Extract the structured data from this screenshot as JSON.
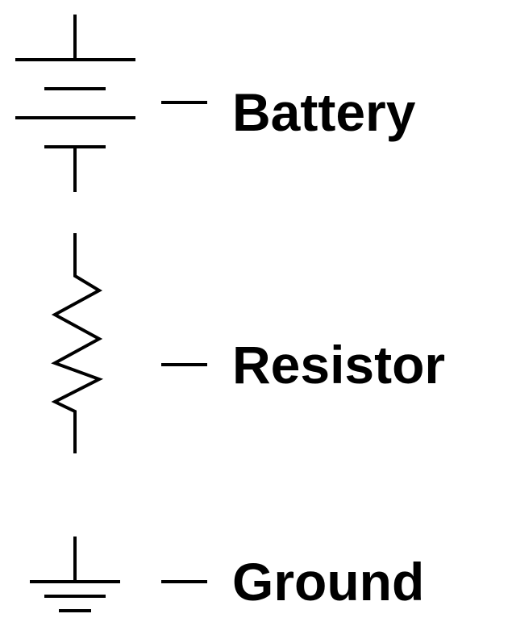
{
  "legend": {
    "items": [
      {
        "id": "battery",
        "label": "Battery",
        "icon": "battery-symbol-icon"
      },
      {
        "id": "resistor",
        "label": "Resistor",
        "icon": "resistor-symbol-icon"
      },
      {
        "id": "ground",
        "label": "Ground",
        "icon": "ground-symbol-icon"
      }
    ]
  },
  "colors": {
    "stroke": "#000000",
    "text": "#000000",
    "background": "#ffffff"
  }
}
